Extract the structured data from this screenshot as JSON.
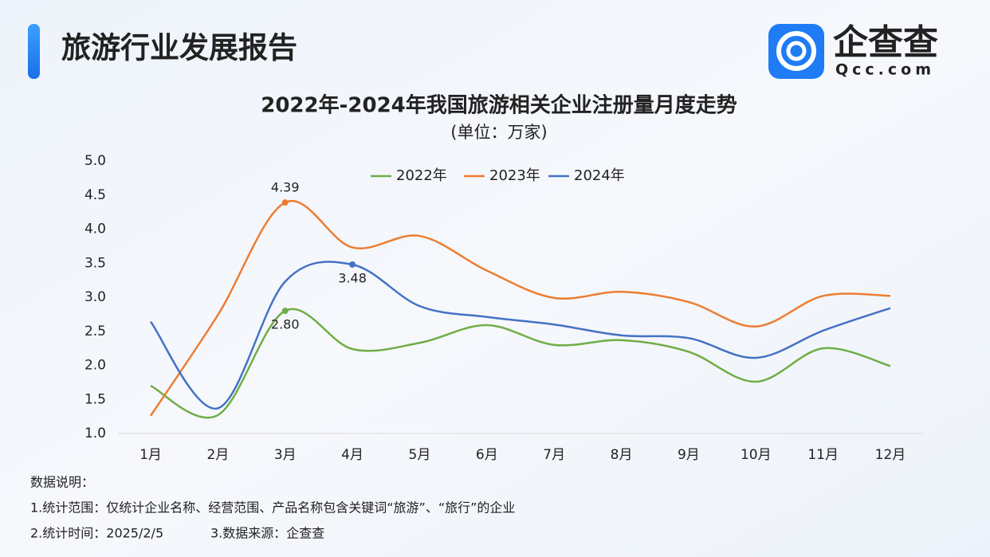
{
  "header": {
    "title": "旅游行业发展报告",
    "logo_name": "企查查",
    "logo_site": "Qcc.com"
  },
  "chart_data": {
    "type": "line",
    "title": "2022年-2024年我国旅游相关企业注册量月度走势",
    "subtitle": "(单位：万家)",
    "categories": [
      "1月",
      "2月",
      "3月",
      "4月",
      "5月",
      "6月",
      "7月",
      "8月",
      "9月",
      "10月",
      "11月",
      "12月"
    ],
    "series": [
      {
        "name": "2022年",
        "color": "#70ad47",
        "values": [
          1.7,
          1.27,
          2.8,
          2.24,
          2.33,
          2.59,
          2.3,
          2.37,
          2.2,
          1.76,
          2.25,
          1.99
        ],
        "value_labels": [
          null,
          null,
          "2.80",
          null,
          null,
          null,
          null,
          null,
          null,
          null,
          null,
          null
        ]
      },
      {
        "name": "2023年",
        "color": "#ed7d31",
        "values": [
          1.26,
          2.74,
          4.39,
          3.73,
          3.9,
          3.39,
          2.99,
          3.08,
          2.93,
          2.57,
          3.02,
          3.02
        ],
        "value_labels": [
          null,
          null,
          "4.39",
          null,
          null,
          null,
          null,
          null,
          null,
          null,
          null,
          null
        ]
      },
      {
        "name": "2024年",
        "color": "#4472c4",
        "values": [
          2.64,
          1.37,
          3.23,
          3.48,
          2.87,
          2.71,
          2.6,
          2.44,
          2.4,
          2.11,
          2.51,
          2.84
        ],
        "value_labels": [
          null,
          null,
          null,
          "3.48",
          null,
          null,
          null,
          null,
          null,
          null,
          null,
          null
        ]
      }
    ],
    "ylim": [
      1,
      5
    ],
    "yticks": [
      {
        "value": 1,
        "label": "1.0"
      },
      {
        "value": 1.5,
        "label": "1.5"
      },
      {
        "value": 2,
        "label": "2.0"
      },
      {
        "value": 2.5,
        "label": "2.5"
      },
      {
        "value": 3,
        "label": "3.0"
      },
      {
        "value": 3.5,
        "label": "3.5"
      },
      {
        "value": 4,
        "label": "4.0"
      },
      {
        "value": 4.5,
        "label": "4.5"
      },
      {
        "value": 5,
        "label": "5.0"
      }
    ],
    "grid": false,
    "legend": "top"
  },
  "notes": {
    "heading": "数据说明：",
    "items": [
      "1.统计范围：仅统计企业名称、经营范围、产品名称包含关键词“旅游”、“旅行”的企业",
      "2.统计时间：2025/2/5",
      "3.数据来源：企查查"
    ]
  }
}
